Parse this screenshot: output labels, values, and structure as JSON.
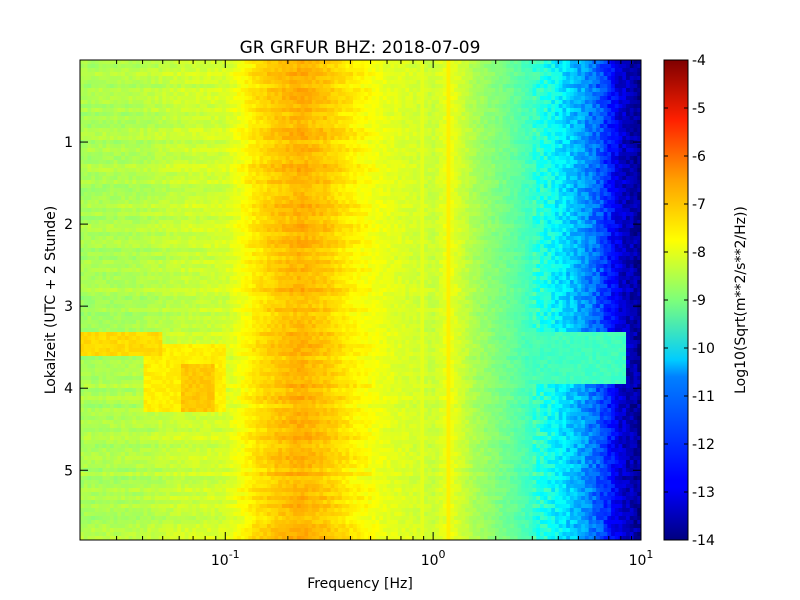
{
  "chart_data": {
    "type": "heatmap",
    "title": "GR GRFUR BHZ: 2018-07-09",
    "xlabel": "Frequency [Hz]",
    "ylabel": "Lokalzeit (UTC + 2 Stunde)",
    "colorbar_label": "Log10(Sqrt(m**2/s**2/Hz))",
    "x_scale": "log",
    "xlim": [
      0.02,
      10
    ],
    "ylim": [
      0,
      5.85
    ],
    "y_inverted": true,
    "x_ticks": [
      {
        "value": 0.1,
        "base": "10",
        "exp": "-1"
      },
      {
        "value": 1,
        "base": "10",
        "exp": "0"
      },
      {
        "value": 10,
        "base": "10",
        "exp": "1"
      }
    ],
    "y_ticks": [
      "1",
      "2",
      "3",
      "4",
      "5"
    ],
    "colorbar_range": [
      -14,
      -4
    ],
    "colorbar_ticks": [
      "-4",
      "-5",
      "-6",
      "-7",
      "-8",
      "-9",
      "-10",
      "-11",
      "-12",
      "-13",
      "-14"
    ],
    "colormap": "jet",
    "profile": {
      "frequency_hz": [
        0.02,
        0.04,
        0.06,
        0.1,
        0.14,
        0.18,
        0.23,
        0.3,
        0.4,
        0.6,
        1.0,
        1.2,
        1.6,
        2.5,
        3.5,
        5,
        6.5,
        8,
        10
      ],
      "log10_psd": [
        -8.6,
        -8.5,
        -8.3,
        -8.2,
        -7.5,
        -7.2,
        -7.0,
        -7.2,
        -7.6,
        -8.0,
        -8.3,
        -7.9,
        -8.6,
        -9.3,
        -10.0,
        -11.0,
        -12.0,
        -13.2,
        -13.8
      ]
    },
    "events": [
      {
        "t_start": 3.3,
        "t_end": 3.6,
        "f_min": 0.02,
        "f_max": 0.05,
        "log10_psd": -7.4
      },
      {
        "t_start": 3.45,
        "t_end": 4.3,
        "f_min": 0.04,
        "f_max": 0.1,
        "log10_psd": -7.6
      },
      {
        "t_start": 3.7,
        "t_end": 4.3,
        "f_min": 0.06,
        "f_max": 0.09,
        "log10_psd": -7.2
      },
      {
        "t_start": 3.3,
        "t_end": 3.95,
        "f_min": 1.2,
        "f_max": 8.5,
        "log10_psd": -9.6
      }
    ],
    "spectral_lines": [
      {
        "frequency_hz": 0.88,
        "log10_psd": -8.0
      },
      {
        "frequency_hz": 1.18,
        "log10_psd": -7.6
      }
    ]
  }
}
